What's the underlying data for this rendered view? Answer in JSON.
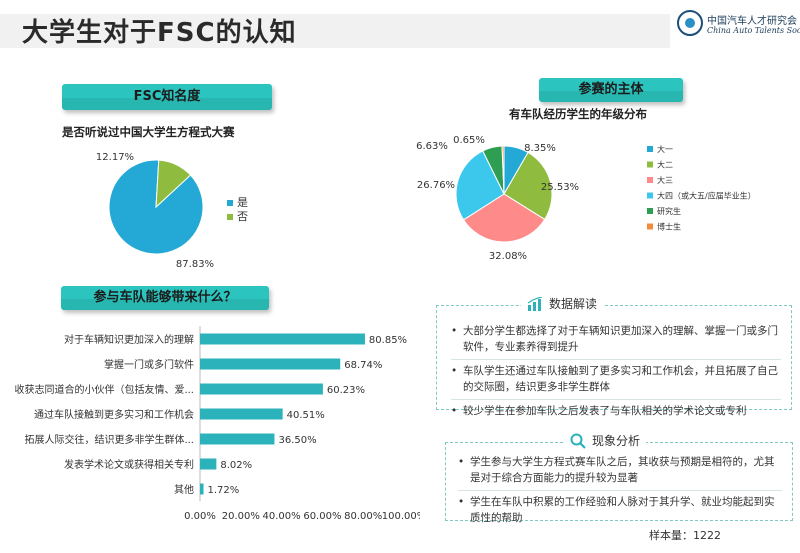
{
  "header": {
    "title": "大学生对于FSC的认知"
  },
  "logo": {
    "name_cn": "中国汽车人才研究会",
    "name_en": "China Auto Talents Society"
  },
  "sections": {
    "awareness_label": "FSC知名度",
    "participants_label": "参赛的主体",
    "benefits_label": "参与车队能够带来什么？"
  },
  "colors": {
    "teal": "#2cc4be",
    "blue": "#24a9d6",
    "green": "#8fbc3f",
    "red": "#ff8a8a",
    "cyan": "#3cc8ec",
    "darkgreen": "#2e9e52",
    "orange": "#f28c3c",
    "bar": "#2bb2bb"
  },
  "chart_data": [
    {
      "type": "pie",
      "title": "是否听说过中国大学生方程式大赛",
      "categories": [
        "是",
        "否"
      ],
      "values": [
        87.83,
        12.17
      ],
      "labels": [
        "87.83%",
        "12.17%"
      ],
      "colors": [
        "#24a9d6",
        "#8fbc3f"
      ],
      "legend": "right"
    },
    {
      "type": "pie",
      "title": "有车队经历学生的年级分布",
      "categories": [
        "大一",
        "大二",
        "大三",
        "大四（或大五/应届毕业生）",
        "研究生",
        "博士生"
      ],
      "values": [
        8.35,
        25.53,
        32.08,
        26.76,
        6.63,
        0.65
      ],
      "labels": [
        "8.35%",
        "25.53%",
        "32.08%",
        "26.76%",
        "6.63%",
        "0.65%"
      ],
      "colors": [
        "#24a9d6",
        "#8fbc3f",
        "#ff8a8a",
        "#3cc8ec",
        "#2e9e52",
        "#f28c3c"
      ],
      "legend": "right"
    },
    {
      "type": "bar",
      "orientation": "horizontal",
      "categories": [
        "对于车辆知识更加深入的理解",
        "掌握一门或多门软件",
        "收获志同道合的小伙伴（包括友情、爱...",
        "通过车队接触到更多实习和工作机会",
        "拓展人际交往，结识更多非学生群体...",
        "发表学术论文或获得相关专利",
        "其他"
      ],
      "values": [
        80.85,
        68.74,
        60.23,
        40.51,
        36.5,
        8.02,
        1.72
      ],
      "labels": [
        "80.85%",
        "68.74%",
        "60.23%",
        "40.51%",
        "36.50%",
        "8.02%",
        "1.72%"
      ],
      "xlim": [
        0,
        100
      ],
      "xticks": [
        "0.00%",
        "20.00%",
        "40.00%",
        "60.00%",
        "80.00%",
        "100.00%"
      ]
    }
  ],
  "insights": {
    "title": "数据解读",
    "items": [
      "大部分学生都选择了对于车辆知识更加深入的理解、掌握一门或多门软件，专业素养得到提升",
      "车队学生还通过车队接触到了更多实习和工作机会，并且拓展了自己的交际圈，结识更多非学生群体",
      "较少学生在参加车队之后发表了与车队相关的学术论文或专利"
    ]
  },
  "analysis": {
    "title": "现象分析",
    "items": [
      "学生参与大学生方程式赛车队之后，其收获与预期是相符的，尤其是对于综合方面能力的提升较为显著",
      "学生在车队中积累的工作经验和人脉对于其升学、就业均能起到实质性的帮助"
    ]
  },
  "footer": {
    "sample": "样本量：1222"
  }
}
